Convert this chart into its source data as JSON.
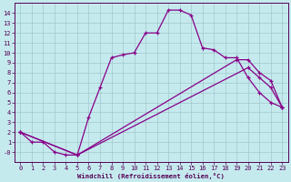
{
  "xlabel": "Windchill (Refroidissement éolien,°C)",
  "background_color": "#c5eaee",
  "grid_color": "#a0c8cc",
  "line_color": "#880088",
  "xlim": [
    -0.5,
    23.5
  ],
  "ylim": [
    -1.0,
    15.0
  ],
  "xticks": [
    0,
    1,
    2,
    3,
    4,
    5,
    6,
    7,
    8,
    9,
    10,
    11,
    12,
    13,
    14,
    15,
    16,
    17,
    18,
    19,
    20,
    21,
    22,
    23
  ],
  "yticks": [
    0,
    1,
    2,
    3,
    4,
    5,
    6,
    7,
    8,
    9,
    10,
    11,
    12,
    13,
    14
  ],
  "ytick_labels": [
    "-0",
    "1",
    "2",
    "3",
    "4",
    "5",
    "6",
    "7",
    "8",
    "9",
    "10",
    "11",
    "12",
    "13",
    "14"
  ],
  "line1_x": [
    0,
    1,
    2,
    3,
    4,
    5,
    6,
    7,
    8,
    9,
    10,
    11,
    12,
    13,
    14,
    15,
    16,
    17,
    18,
    19,
    20,
    21,
    22,
    23
  ],
  "line1_y": [
    2.0,
    1.0,
    1.0,
    0.0,
    -0.3,
    -0.3,
    3.5,
    6.5,
    9.5,
    9.8,
    10.0,
    12.0,
    12.0,
    14.3,
    14.3,
    13.8,
    10.5,
    10.3,
    9.5,
    9.5,
    7.5,
    6.0,
    5.0,
    4.5
  ],
  "line2_x": [
    0,
    5,
    19,
    20,
    21,
    22,
    23
  ],
  "line2_y": [
    2.0,
    -0.3,
    9.3,
    9.3,
    8.0,
    7.2,
    4.5
  ],
  "line3_x": [
    0,
    5,
    20,
    21,
    22,
    23
  ],
  "line3_y": [
    2.0,
    -0.3,
    8.5,
    7.5,
    6.5,
    4.5
  ]
}
